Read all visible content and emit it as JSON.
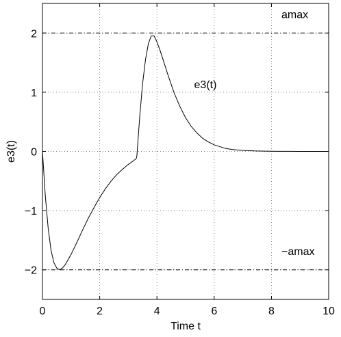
{
  "chart_data": {
    "type": "line",
    "title": "",
    "xlabel": "Time  t",
    "ylabel": "e3(t)",
    "xlim": [
      0,
      10
    ],
    "ylim": [
      -2.5,
      2.5
    ],
    "xticks": [
      0,
      2,
      4,
      6,
      8,
      10
    ],
    "yticks": [
      -2,
      -1,
      0,
      1,
      2
    ],
    "xtick_labels": [
      "0",
      "2",
      "4",
      "6",
      "8",
      "10"
    ],
    "ytick_labels": [
      "−2",
      "−1",
      "0",
      "1",
      "2"
    ],
    "grid": true,
    "series": [
      {
        "name": "e3(t)",
        "style": "solid",
        "color": "#000000",
        "x": [
          0,
          0.1,
          0.2,
          0.3,
          0.4,
          0.5,
          0.6,
          0.7,
          0.8,
          1.0,
          1.2,
          1.4,
          1.6,
          1.8,
          2.0,
          2.2,
          2.4,
          2.6,
          2.8,
          3.0,
          3.2,
          3.28,
          3.3,
          3.4,
          3.5,
          3.6,
          3.7,
          3.8,
          3.9,
          4.0,
          4.1,
          4.2,
          4.3,
          4.4,
          4.6,
          4.8,
          5.0,
          5.2,
          5.4,
          5.6,
          5.8,
          6.0,
          6.2,
          6.4,
          6.6,
          6.8,
          7.0,
          7.4,
          7.8,
          8.2,
          8.6,
          9.0,
          9.5,
          10.0
        ],
        "y": [
          0,
          -0.75,
          -1.3,
          -1.67,
          -1.88,
          -1.97,
          -2.0,
          -1.97,
          -1.91,
          -1.74,
          -1.54,
          -1.33,
          -1.13,
          -0.95,
          -0.78,
          -0.63,
          -0.5,
          -0.39,
          -0.3,
          -0.22,
          -0.15,
          -0.12,
          -0.07,
          0.6,
          1.15,
          1.55,
          1.82,
          1.95,
          1.95,
          1.85,
          1.72,
          1.57,
          1.42,
          1.27,
          0.99,
          0.76,
          0.57,
          0.42,
          0.31,
          0.22,
          0.16,
          0.11,
          0.08,
          0.05,
          0.035,
          0.025,
          0.017,
          0.008,
          0.004,
          0.002,
          0.001,
          0.0,
          0.0,
          0.0
        ]
      },
      {
        "name": "amax",
        "style": "dashdot",
        "color": "#000000",
        "x": [
          0,
          10
        ],
        "y": [
          2,
          2
        ]
      },
      {
        "name": "−amax",
        "style": "dashdot",
        "color": "#000000",
        "x": [
          0,
          10
        ],
        "y": [
          -2,
          -2
        ]
      }
    ],
    "annotations": [
      {
        "text": "amax",
        "x": 8.35,
        "y": 2.25
      },
      {
        "text": "−amax",
        "x": 8.35,
        "y": -1.75
      },
      {
        "text": "e3(t)",
        "x": 5.3,
        "y": 1.07
      }
    ]
  }
}
